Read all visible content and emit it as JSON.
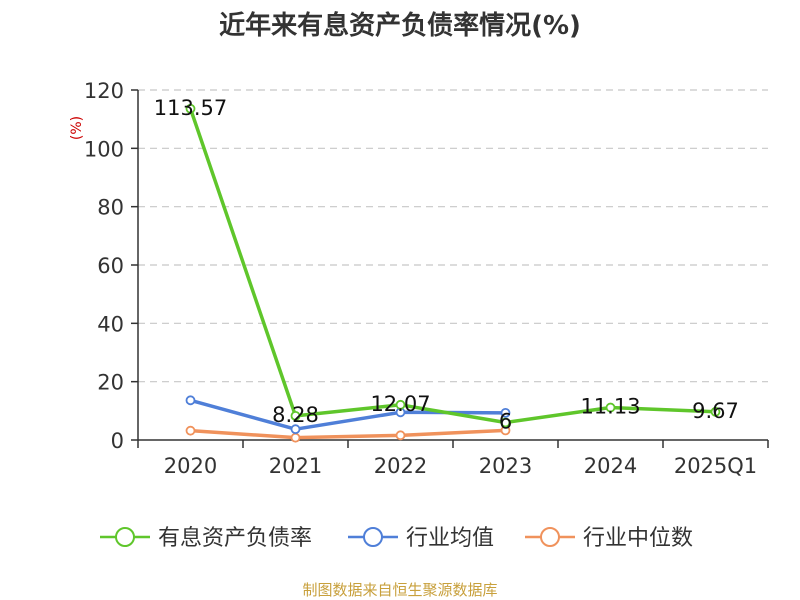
{
  "chart_data": {
    "type": "line",
    "title": "近年来有息资产负债率情况(%)",
    "ylabel": "(%)",
    "categories": [
      "2020",
      "2021",
      "2022",
      "2023",
      "2024",
      "2025Q1"
    ],
    "ylim": [
      0,
      120
    ],
    "yticks": [
      0,
      20,
      40,
      60,
      80,
      100,
      120
    ],
    "grid": true,
    "legend_position": "bottom",
    "series": [
      {
        "name": "有息资产负债率",
        "color": "#5fc62b",
        "values": [
          113.57,
          8.28,
          12.07,
          6,
          11.13,
          9.67
        ],
        "labels": [
          "113.57",
          "8.28",
          "12.07",
          "6",
          "11.13",
          "9.67"
        ]
      },
      {
        "name": "行业均值",
        "color": "#4f7fd8",
        "values": [
          13.6,
          3.7,
          9.5,
          9.3,
          null,
          null
        ],
        "labels": []
      },
      {
        "name": "行业中位数",
        "color": "#f0925c",
        "values": [
          3.2,
          0.8,
          1.6,
          3.3,
          null,
          null
        ],
        "labels": []
      }
    ],
    "source": "制图数据来自恒生聚源数据库"
  }
}
